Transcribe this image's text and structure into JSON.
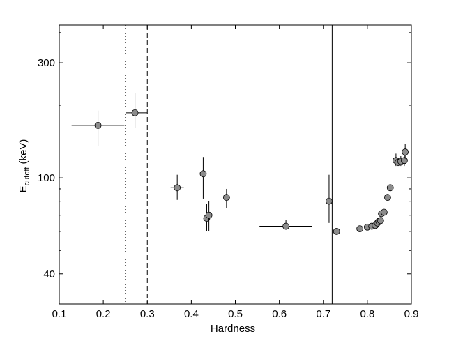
{
  "chart_data": {
    "type": "scatter",
    "xlabel": "Hardness",
    "ylabel": {
      "main": "E",
      "subscript": "cutoff",
      "unit": " (keV)"
    },
    "xlim": [
      0.1,
      0.9
    ],
    "ylim": [
      30,
      430
    ],
    "yscale": "log",
    "x_ticks": [
      0.1,
      0.2,
      0.3,
      0.4,
      0.5,
      0.6,
      0.7,
      0.8,
      0.9
    ],
    "x_tick_labels": [
      "0.1",
      "0.2",
      "0.3",
      "0.4",
      "0.5",
      "0.6",
      "0.7",
      "0.8",
      "0.9"
    ],
    "y_major_ticks": [
      40,
      100,
      300
    ],
    "y_tick_labels": [
      "40",
      "100",
      "300"
    ],
    "y_minor_ticks": [
      50,
      60,
      70,
      80,
      90,
      200,
      400
    ],
    "grid": false,
    "legend": "none",
    "marker_color": "#8c8c8c",
    "vertical_lines": [
      {
        "x": 0.25,
        "style": "dotted"
      },
      {
        "x": 0.3,
        "style": "dashed"
      },
      {
        "x": 0.72,
        "style": "solid"
      }
    ],
    "points": [
      {
        "x": 0.188,
        "y": 165,
        "xerr": [
          0.06,
          0.06
        ],
        "yerr": [
          30,
          25
        ]
      },
      {
        "x": 0.272,
        "y": 186,
        "xerr": [
          0.02,
          0.028
        ],
        "yerr": [
          25,
          38
        ]
      },
      {
        "x": 0.368,
        "y": 91,
        "xerr": [
          0.015,
          0.015
        ],
        "yerr": [
          10,
          12
        ]
      },
      {
        "x": 0.427,
        "y": 104,
        "xerr": [
          0,
          0
        ],
        "yerr": [
          22,
          18
        ]
      },
      {
        "x": 0.435,
        "y": 68,
        "xerr": [
          0,
          0
        ],
        "yerr": [
          8,
          10
        ]
      },
      {
        "x": 0.44,
        "y": 70,
        "xerr": [
          0,
          0
        ],
        "yerr": [
          10,
          10
        ]
      },
      {
        "x": 0.48,
        "y": 83,
        "xerr": [
          0,
          0
        ],
        "yerr": [
          8,
          7
        ]
      },
      {
        "x": 0.615,
        "y": 63,
        "xerr": [
          0.06,
          0.06
        ],
        "yerr": [
          2,
          4
        ]
      },
      {
        "x": 0.713,
        "y": 80,
        "xerr": [
          0,
          0
        ],
        "yerr": [
          15,
          23
        ]
      },
      {
        "x": 0.73,
        "y": 60,
        "xerr": [
          0,
          0
        ],
        "yerr": [
          0,
          0
        ]
      },
      {
        "x": 0.783,
        "y": 61.5,
        "xerr": [
          0,
          0
        ],
        "yerr": [
          0,
          0
        ]
      },
      {
        "x": 0.8,
        "y": 62.5,
        "xerr": [
          0,
          0
        ],
        "yerr": [
          1,
          1
        ]
      },
      {
        "x": 0.81,
        "y": 63,
        "xerr": [
          0,
          0
        ],
        "yerr": [
          0,
          0
        ]
      },
      {
        "x": 0.818,
        "y": 63.5,
        "xerr": [
          0,
          0
        ],
        "yerr": [
          0,
          0
        ]
      },
      {
        "x": 0.823,
        "y": 65,
        "xerr": [
          0,
          0
        ],
        "yerr": [
          0,
          0
        ]
      },
      {
        "x": 0.826,
        "y": 66,
        "xerr": [
          0,
          0
        ],
        "yerr": [
          0,
          0
        ]
      },
      {
        "x": 0.83,
        "y": 66.5,
        "xerr": [
          0,
          0
        ],
        "yerr": [
          0,
          0
        ]
      },
      {
        "x": 0.832,
        "y": 71,
        "xerr": [
          0,
          0
        ],
        "yerr": [
          0,
          0
        ]
      },
      {
        "x": 0.838,
        "y": 72,
        "xerr": [
          0,
          0
        ],
        "yerr": [
          0,
          0
        ]
      },
      {
        "x": 0.846,
        "y": 83,
        "xerr": [
          0,
          0
        ],
        "yerr": [
          0,
          0
        ]
      },
      {
        "x": 0.852,
        "y": 91,
        "xerr": [
          0,
          0
        ],
        "yerr": [
          3,
          3
        ]
      },
      {
        "x": 0.865,
        "y": 118,
        "xerr": [
          0,
          0
        ],
        "yerr": [
          6,
          8
        ]
      },
      {
        "x": 0.87,
        "y": 116,
        "xerr": [
          0,
          0
        ],
        "yerr": [
          4,
          5
        ]
      },
      {
        "x": 0.876,
        "y": 117,
        "xerr": [
          0,
          0
        ],
        "yerr": [
          5,
          6
        ]
      },
      {
        "x": 0.884,
        "y": 118,
        "xerr": [
          0,
          0
        ],
        "yerr": [
          6,
          8
        ]
      },
      {
        "x": 0.886,
        "y": 128,
        "xerr": [
          0,
          0
        ],
        "yerr": [
          8,
          10
        ]
      }
    ]
  }
}
